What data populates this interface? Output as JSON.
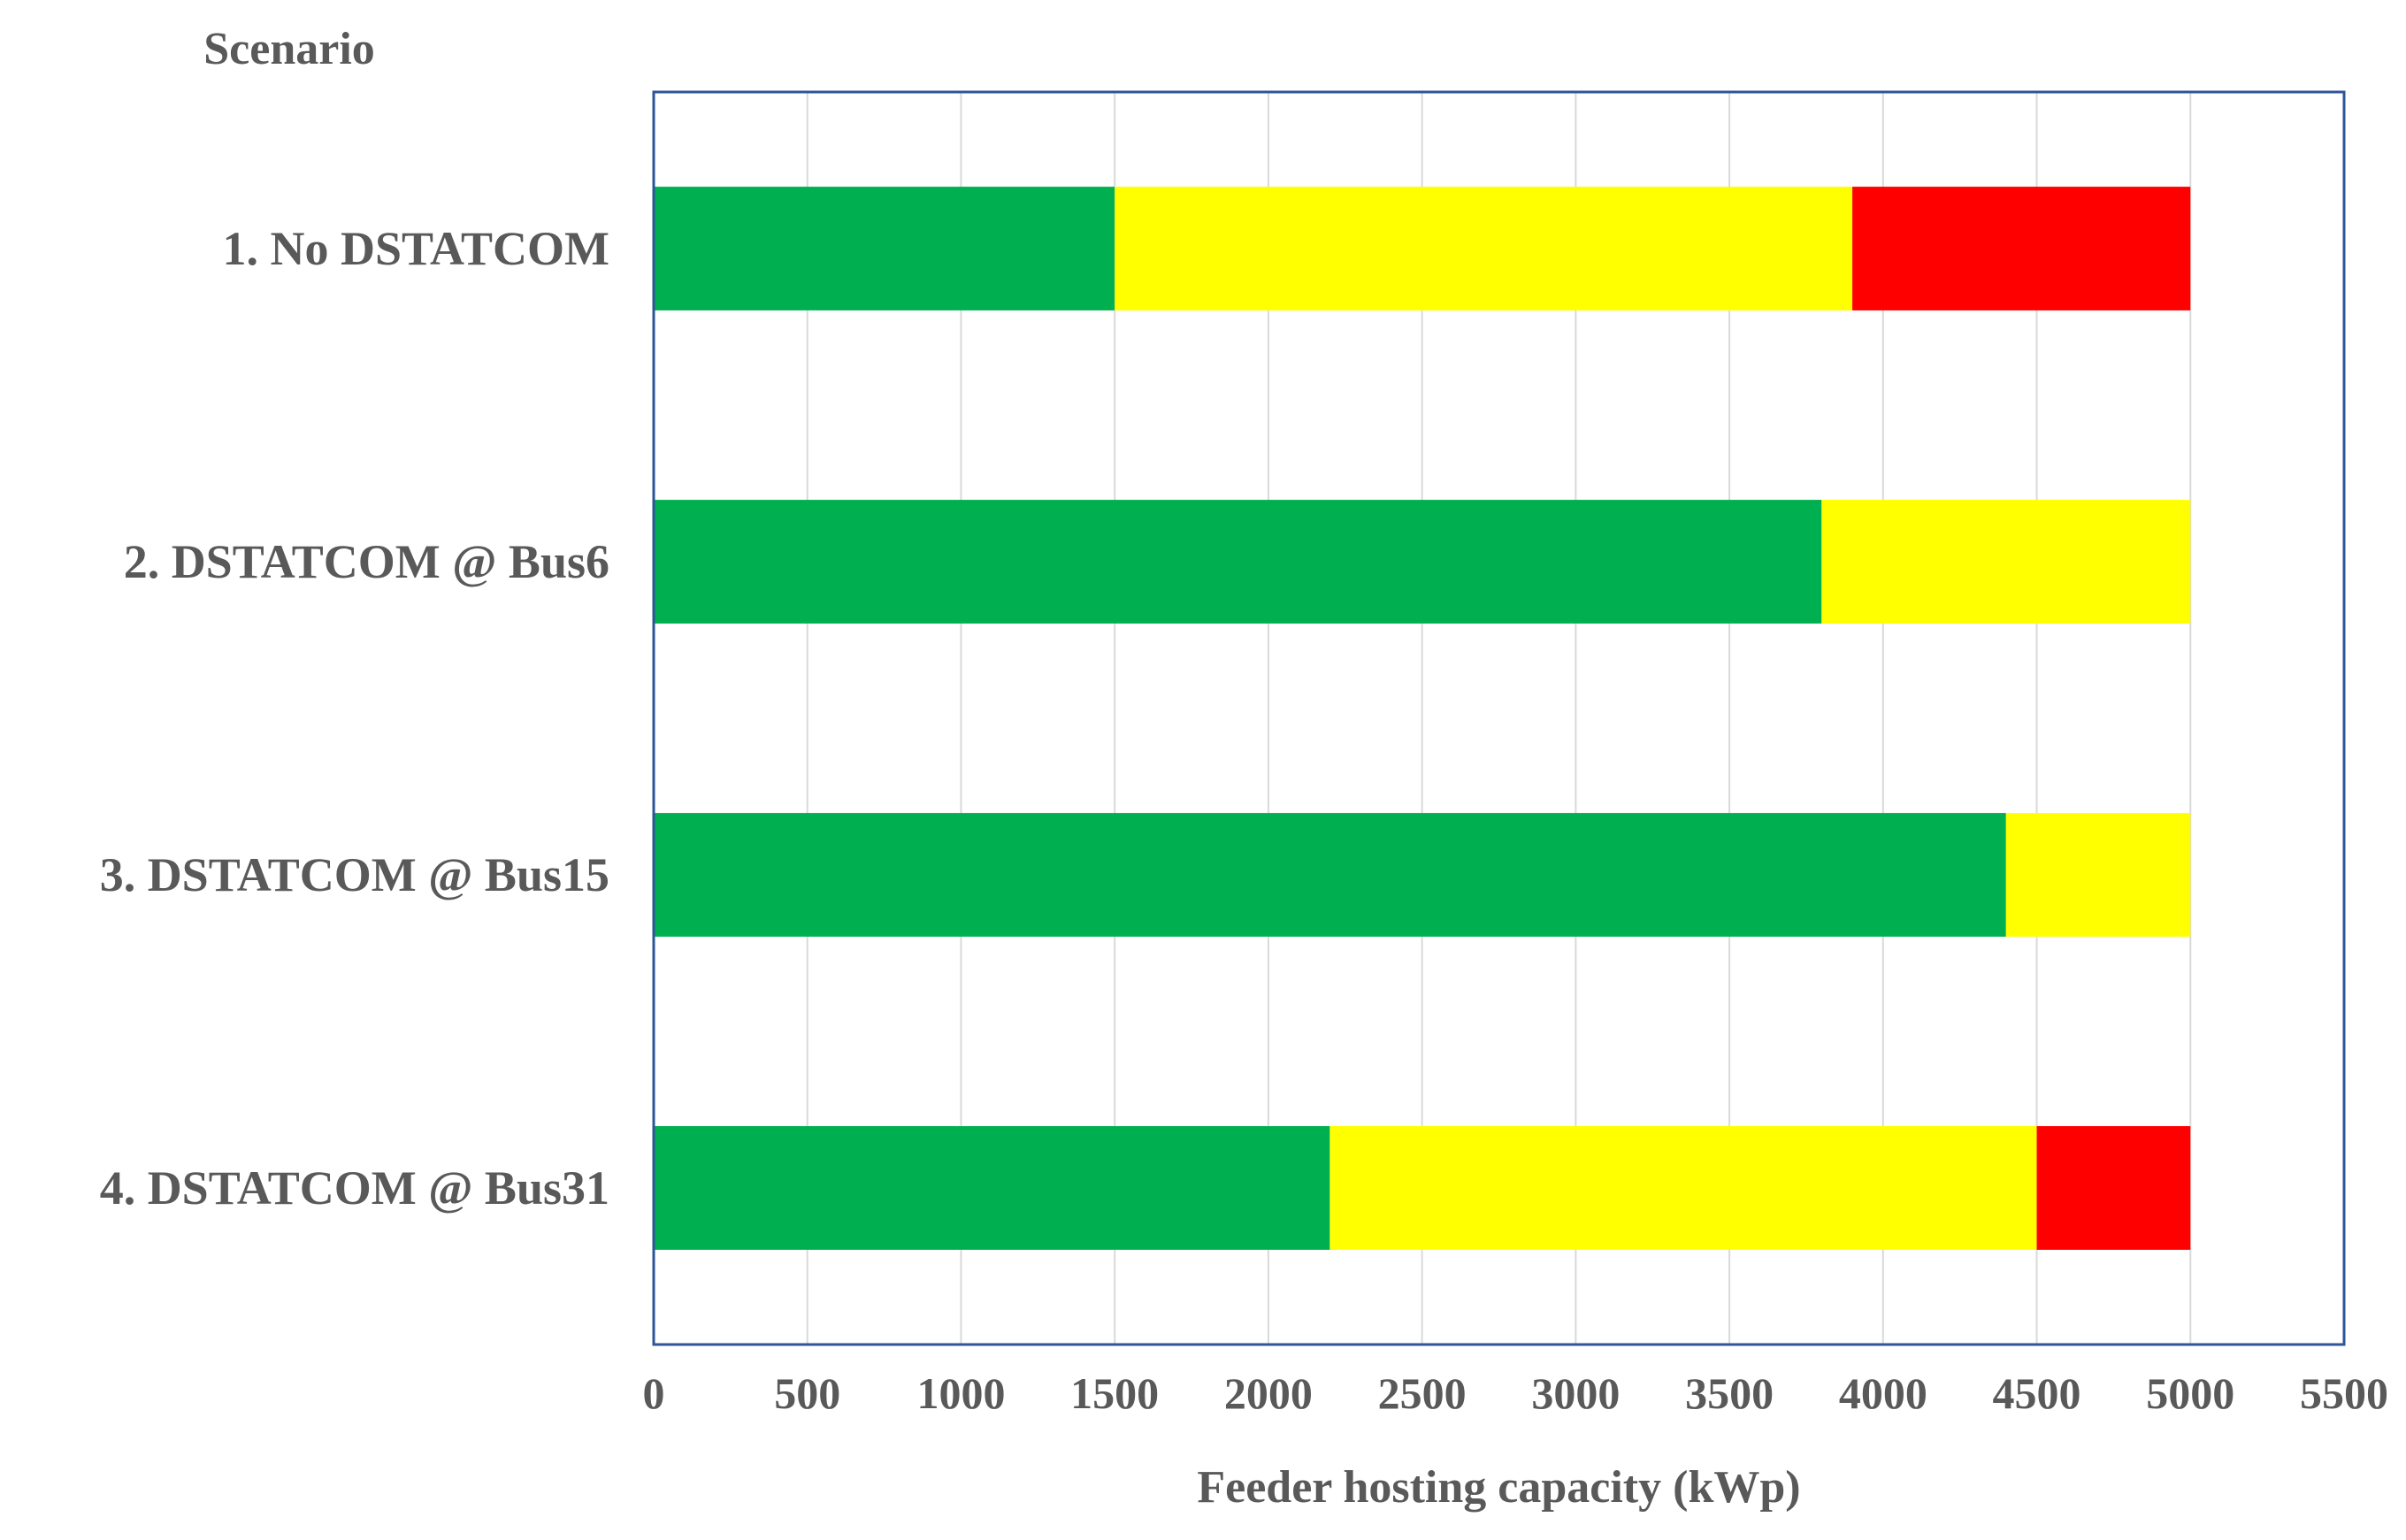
{
  "chart_data": {
    "type": "bar",
    "orientation": "horizontal",
    "stacked": true,
    "title": "",
    "ylabel": "Scenario",
    "xlabel": "Feeder hosting capacity (kWp)",
    "xlim": [
      0,
      5500
    ],
    "xticks": [
      0,
      500,
      1000,
      1500,
      2000,
      2500,
      3000,
      3500,
      4000,
      4500,
      5000,
      5500
    ],
    "grid": true,
    "legend": "none",
    "categories": [
      "1. No DSTATCOM",
      "2. DSTATCOM @ Bus6",
      "3. DSTATCOM @ Bus15",
      "4. DSTATCOM @ Bus31"
    ],
    "series": [
      {
        "color": "#00b050",
        "values": [
          1500,
          3800,
          4400,
          2200
        ]
      },
      {
        "color": "#ffff00",
        "values": [
          2400,
          1200,
          600,
          2300
        ]
      },
      {
        "color": "#ff0000",
        "values": [
          1100,
          0,
          0,
          500
        ]
      }
    ]
  }
}
